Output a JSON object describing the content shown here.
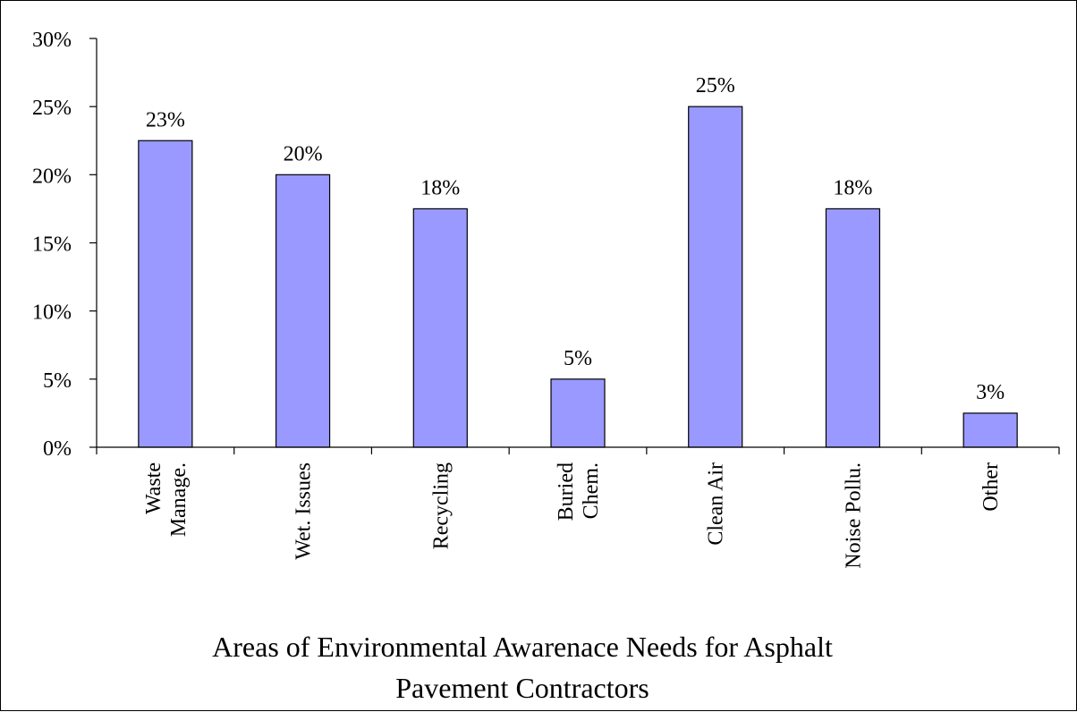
{
  "chart_data": {
    "type": "bar",
    "title": "Areas of Environmental Awarenace Needs for Asphalt Pavement Contractors",
    "title_lines": [
      "Areas of Environmental Awarenace Needs for Asphalt",
      "Pavement Contractors"
    ],
    "categories": [
      "Waste Manage.",
      "Wet. Issues",
      "Recycling",
      "Buried Chem.",
      "Clean Air",
      "Noise Pollu.",
      "Other"
    ],
    "category_lines": [
      [
        "Waste",
        "Manage."
      ],
      [
        "Wet. Issues"
      ],
      [
        "Recycling"
      ],
      [
        "Buried",
        "Chem."
      ],
      [
        "Clean Air"
      ],
      [
        "Noise Pollu."
      ],
      [
        "Other"
      ]
    ],
    "values": [
      22.5,
      20,
      17.5,
      5,
      25,
      17.5,
      2.5
    ],
    "data_labels": [
      "23%",
      "20%",
      "18%",
      "5%",
      "25%",
      "18%",
      "3%"
    ],
    "y_ticks": [
      0,
      5,
      10,
      15,
      20,
      25,
      30
    ],
    "y_tick_labels": [
      "0%",
      "5%",
      "10%",
      "15%",
      "20%",
      "25%",
      "30%"
    ],
    "ylim": [
      0,
      30
    ],
    "xlabel": "",
    "ylabel": "",
    "grid": false,
    "legend": "none",
    "bar_color": "#9999ff",
    "bar_edge_color": "#000000"
  }
}
